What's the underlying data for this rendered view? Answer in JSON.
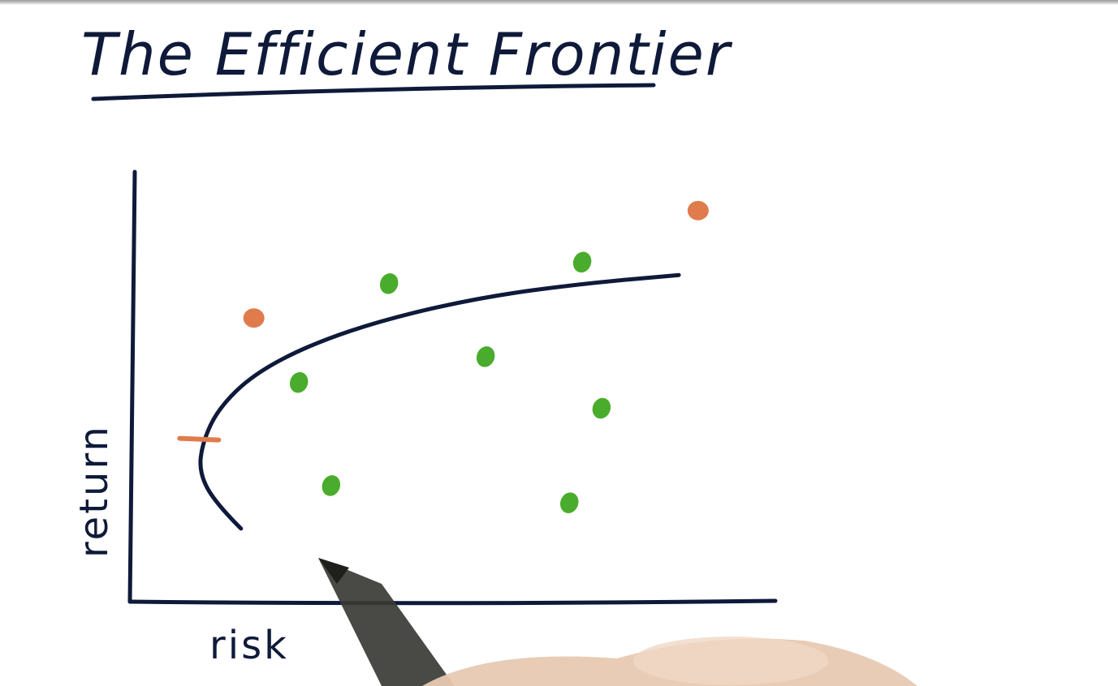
{
  "chart_data": {
    "type": "scatter",
    "title": "The Efficient Frontier",
    "xlabel": "risk",
    "ylabel": "return",
    "xlim": [
      0,
      10
    ],
    "ylim": [
      0,
      10
    ],
    "grid": false,
    "ticks": false,
    "colors": {
      "ink": "#0f1a3a",
      "portfolio": "#4aac2c",
      "highlight": "#e07b4c",
      "pen": "#3a3a35",
      "hand": "#e7c9b2"
    },
    "series": [
      {
        "kind": "curve",
        "points": [
          {
            "x": 1.7,
            "y": 1.7
          },
          {
            "x": 1.3,
            "y": 2.3
          },
          {
            "x": 1.05,
            "y": 3.0
          },
          {
            "x": 1.1,
            "y": 3.7
          },
          {
            "x": 1.35,
            "y": 4.5
          },
          {
            "x": 1.9,
            "y": 5.3
          },
          {
            "x": 2.8,
            "y": 6.0
          },
          {
            "x": 4.0,
            "y": 6.6
          },
          {
            "x": 5.5,
            "y": 7.1
          },
          {
            "x": 7.0,
            "y": 7.4
          },
          {
            "x": 8.5,
            "y": 7.6
          }
        ]
      },
      {
        "kind": "points",
        "points": [
          {
            "x": 4.0,
            "y": 7.4
          },
          {
            "x": 7.0,
            "y": 7.9
          },
          {
            "x": 5.5,
            "y": 5.7
          },
          {
            "x": 2.6,
            "y": 5.1
          },
          {
            "x": 7.3,
            "y": 4.5
          },
          {
            "x": 3.1,
            "y": 2.7
          },
          {
            "x": 6.8,
            "y": 2.3
          }
        ]
      },
      {
        "kind": "points",
        "points": [
          {
            "x": 8.8,
            "y": 9.1
          },
          {
            "x": 1.9,
            "y": 6.6
          }
        ]
      },
      {
        "kind": "markers",
        "points": [
          {
            "x": 1.0,
            "y": 3.8
          }
        ]
      }
    ]
  },
  "scene": {
    "pen_icon": "pen-tip-icon",
    "hand_icon": "hand-icon"
  }
}
